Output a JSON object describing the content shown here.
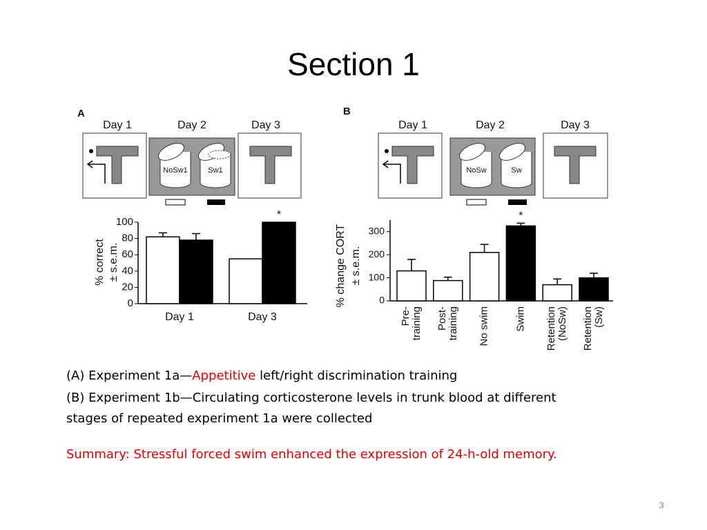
{
  "title": "Section 1",
  "figure": {
    "panels": [
      {
        "label": "A",
        "days": [
          "Day 1",
          "Day 2",
          "Day 3"
        ],
        "cups": [
          "NoSw1",
          "Sw1"
        ]
      },
      {
        "label": "B",
        "days": [
          "Day 1",
          "Day 2",
          "Day 3"
        ],
        "cups": [
          "NoSw",
          "Sw"
        ]
      }
    ]
  },
  "chart_data": [
    {
      "type": "bar",
      "categories": [
        "Day 1",
        "Day 3"
      ],
      "ylabel": [
        "% correct",
        "± s.e.m."
      ],
      "ylim": [
        0,
        100
      ],
      "yticks": [
        0,
        20,
        40,
        60,
        80,
        100
      ],
      "series": [
        {
          "name": "NoSw1",
          "color": "#ffffff",
          "values": [
            82,
            55
          ],
          "errors": [
            5,
            0
          ]
        },
        {
          "name": "Sw1",
          "color": "#000000",
          "values": [
            78,
            100
          ],
          "errors": [
            8,
            0
          ]
        }
      ],
      "annotations": [
        {
          "text": "*",
          "category": 1,
          "series": 1
        }
      ]
    },
    {
      "type": "bar",
      "categories": [
        [
          "Pre-",
          "training"
        ],
        [
          "Post-",
          "training"
        ],
        [
          "No swim"
        ],
        [
          "Swim"
        ],
        [
          "Retention",
          "(NoSw)"
        ],
        [
          "Retention",
          "(Sw)"
        ]
      ],
      "ylabel": [
        "% change CORT",
        "± s.e.m."
      ],
      "ylim": [
        0,
        350
      ],
      "yticks": [
        0,
        100,
        200,
        300
      ],
      "values": [
        130,
        88,
        210,
        325,
        70,
        100
      ],
      "errors": [
        50,
        15,
        35,
        12,
        25,
        20
      ],
      "colors": [
        "#ffffff",
        "#ffffff",
        "#ffffff",
        "#000000",
        "#ffffff",
        "#000000"
      ],
      "annotations": [
        {
          "text": "*",
          "category": 3
        }
      ]
    }
  ],
  "caption": {
    "a_prefix": "(A) Experiment 1a—",
    "a_highlight": "Appetitive",
    "a_suffix": " left/right discrimination training",
    "b_lines": [
      "(B) Experiment 1b—Circulating corticosterone levels in trunk blood at different",
      "stages of repeated experiment 1a were collected"
    ],
    "summary": "Summary: Stressful forced swim enhanced the expression of 24-h-old memory."
  },
  "page_number": "3"
}
